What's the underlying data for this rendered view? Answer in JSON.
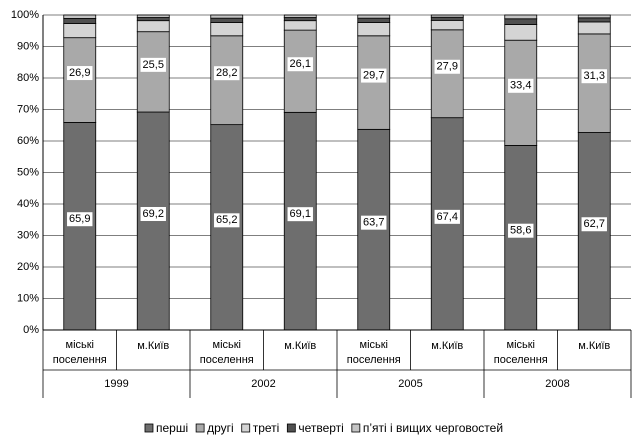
{
  "chart_data": {
    "type": "stacked_bar",
    "categories": [
      "міські поселення",
      "м.Київ",
      "міські поселення",
      "м.Київ",
      "міські поселення",
      "м.Київ",
      "міські поселення",
      "м.Київ"
    ],
    "groups": [
      "1999",
      "2002",
      "2005",
      "2008"
    ],
    "series": [
      {
        "name": "перші",
        "color": "#6e6e6e",
        "values": [
          65.9,
          69.2,
          65.2,
          69.1,
          63.7,
          67.4,
          58.6,
          62.7
        ],
        "value_labels": [
          "65,9",
          "69,2",
          "65,2",
          "69,1",
          "63,7",
          "67,4",
          "58,6",
          "62,7"
        ]
      },
      {
        "name": "другі",
        "color": "#a9a9a9",
        "values": [
          26.9,
          25.5,
          28.2,
          26.1,
          29.7,
          27.9,
          33.4,
          31.3
        ],
        "value_labels": [
          "26,9",
          "25,5",
          "28,2",
          "26,1",
          "29,7",
          "27,9",
          "33,4",
          "31,3"
        ]
      },
      {
        "name": "треті",
        "color": "#d4d4d4",
        "values": [
          4.5,
          3.5,
          4.2,
          3.0,
          4.2,
          3.0,
          5.0,
          3.8
        ]
      },
      {
        "name": "четверті",
        "color": "#505050",
        "values": [
          1.6,
          1.0,
          1.4,
          1.0,
          1.4,
          1.0,
          1.8,
          1.3
        ]
      },
      {
        "name": "п’яті і вищих черговостей",
        "color": "#c4c4c4",
        "values": [
          1.1,
          0.8,
          1.0,
          0.8,
          1.0,
          0.7,
          1.2,
          0.9
        ]
      }
    ],
    "ylim": [
      0,
      100
    ],
    "yticks": [
      {
        "value": 0,
        "label": "0%"
      },
      {
        "value": 10,
        "label": "10%"
      },
      {
        "value": 20,
        "label": "20%"
      },
      {
        "value": 30,
        "label": "30%"
      },
      {
        "value": 40,
        "label": "40%"
      },
      {
        "value": 50,
        "label": "50%"
      },
      {
        "value": 60,
        "label": "60%"
      },
      {
        "value": 70,
        "label": "70%"
      },
      {
        "value": 80,
        "label": "80%"
      },
      {
        "value": 90,
        "label": "90%"
      },
      {
        "value": 100,
        "label": "100%"
      }
    ],
    "grid": true,
    "legend": "bottom"
  }
}
